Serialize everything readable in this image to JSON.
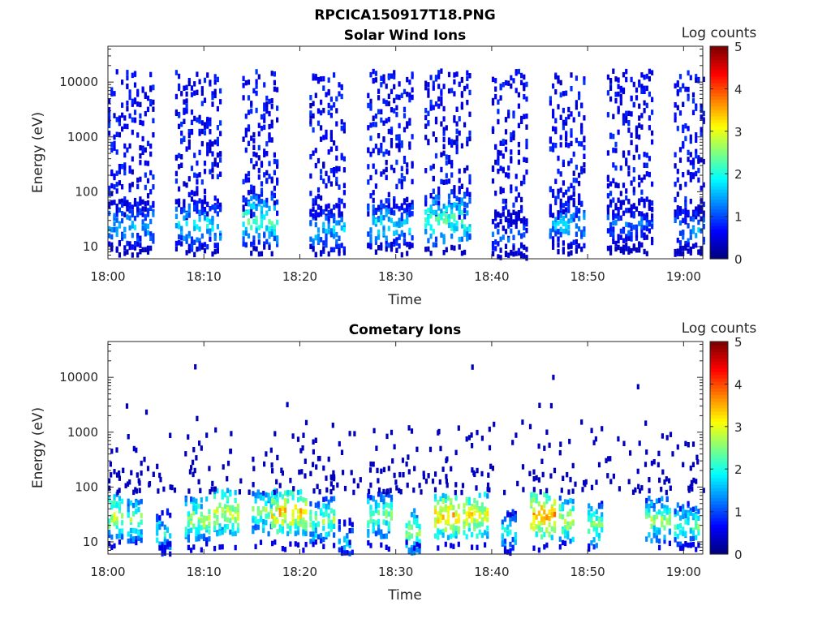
{
  "figure_title": "RPCICA150917T18.PNG",
  "chart_data": [
    {
      "type": "heatmap",
      "title": "Solar Wind Ions",
      "xlabel": "Time",
      "ylabel": "Energy (eV)",
      "x_scale": "time",
      "y_scale": "log",
      "xlim": [
        "18:00",
        "19:02"
      ],
      "ylim": [
        6,
        45000
      ],
      "x_ticks": [
        "18:00",
        "18:10",
        "18:20",
        "18:30",
        "18:40",
        "18:50",
        "19:00"
      ],
      "y_ticks": [
        "10",
        "100",
        "1000",
        "10000"
      ],
      "colorbar": {
        "label": "Log counts",
        "range": [
          0,
          5
        ],
        "ticks": [
          "0",
          "1",
          "2",
          "3",
          "4",
          "5"
        ],
        "colormap": "jet"
      },
      "bursts": [
        {
          "start": "18:00",
          "end": "18:04",
          "peak_energy_ev": 25,
          "peak_log_counts": 2.0
        },
        {
          "start": "18:07",
          "end": "18:11",
          "peak_energy_ev": 25,
          "peak_log_counts": 2.2
        },
        {
          "start": "18:14",
          "end": "18:17",
          "peak_energy_ev": 30,
          "peak_log_counts": 2.6
        },
        {
          "start": "18:21",
          "end": "18:24",
          "peak_energy_ev": 20,
          "peak_log_counts": 2.0
        },
        {
          "start": "18:27",
          "end": "18:31",
          "peak_energy_ev": 25,
          "peak_log_counts": 2.2
        },
        {
          "start": "18:33",
          "end": "18:37",
          "peak_energy_ev": 30,
          "peak_log_counts": 2.6
        },
        {
          "start": "18:40",
          "end": "18:43",
          "peak_energy_ev": 15,
          "peak_log_counts": 1.5
        },
        {
          "start": "18:46",
          "end": "18:49",
          "peak_energy_ev": 25,
          "peak_log_counts": 2.0
        },
        {
          "start": "18:52",
          "end": "18:56",
          "peak_energy_ev": 25,
          "peak_log_counts": 1.6
        },
        {
          "start": "18:59",
          "end": "19:02",
          "peak_energy_ev": 20,
          "peak_log_counts": 1.8
        }
      ]
    },
    {
      "type": "heatmap",
      "title": "Cometary Ions",
      "xlabel": "Time",
      "ylabel": "Energy (eV)",
      "x_scale": "time",
      "y_scale": "log",
      "xlim": [
        "18:00",
        "19:02"
      ],
      "ylim": [
        6,
        45000
      ],
      "x_ticks": [
        "18:00",
        "18:10",
        "18:20",
        "18:30",
        "18:40",
        "18:50",
        "19:00"
      ],
      "y_ticks": [
        "10",
        "100",
        "1000",
        "10000"
      ],
      "colorbar": {
        "label": "Log counts",
        "range": [
          0,
          5
        ],
        "ticks": [
          "0",
          "1",
          "2",
          "3",
          "4",
          "5"
        ],
        "colormap": "jet"
      },
      "bursts": [
        {
          "start": "18:00",
          "end": "18:01",
          "peak_energy_ev": 30,
          "peak_log_counts": 3.3
        },
        {
          "start": "18:02",
          "end": "18:03",
          "peak_energy_ev": 25,
          "peak_log_counts": 3.0
        },
        {
          "start": "18:05",
          "end": "18:06",
          "peak_energy_ev": 15,
          "peak_log_counts": 2.5
        },
        {
          "start": "18:08",
          "end": "18:10",
          "peak_energy_ev": 25,
          "peak_log_counts": 3.2
        },
        {
          "start": "18:11",
          "end": "18:13",
          "peak_energy_ev": 35,
          "peak_log_counts": 3.4
        },
        {
          "start": "18:15",
          "end": "18:17",
          "peak_energy_ev": 35,
          "peak_log_counts": 3.0
        },
        {
          "start": "18:17",
          "end": "18:20",
          "peak_energy_ev": 35,
          "peak_log_counts": 3.8
        },
        {
          "start": "18:21",
          "end": "18:23",
          "peak_energy_ev": 25,
          "peak_log_counts": 3.0
        },
        {
          "start": "18:24",
          "end": "18:25",
          "peak_energy_ev": 10,
          "peak_log_counts": 2.2
        },
        {
          "start": "18:27",
          "end": "18:29",
          "peak_energy_ev": 30,
          "peak_log_counts": 3.0
        },
        {
          "start": "18:31",
          "end": "18:32",
          "peak_energy_ev": 15,
          "peak_log_counts": 3.0
        },
        {
          "start": "18:34",
          "end": "18:36",
          "peak_energy_ev": 30,
          "peak_log_counts": 3.8
        },
        {
          "start": "18:37",
          "end": "18:39",
          "peak_energy_ev": 30,
          "peak_log_counts": 3.6
        },
        {
          "start": "18:41",
          "end": "18:42",
          "peak_energy_ev": 15,
          "peak_log_counts": 2.4
        },
        {
          "start": "18:44",
          "end": "18:46",
          "peak_energy_ev": 30,
          "peak_log_counts": 4.0
        },
        {
          "start": "18:47",
          "end": "18:48",
          "peak_energy_ev": 25,
          "peak_log_counts": 3.4
        },
        {
          "start": "18:50",
          "end": "18:51",
          "peak_energy_ev": 20,
          "peak_log_counts": 3.0
        },
        {
          "start": "18:56",
          "end": "18:58",
          "peak_energy_ev": 25,
          "peak_log_counts": 3.0
        },
        {
          "start": "18:59",
          "end": "19:01",
          "peak_energy_ev": 20,
          "peak_log_counts": 2.8
        }
      ]
    }
  ]
}
